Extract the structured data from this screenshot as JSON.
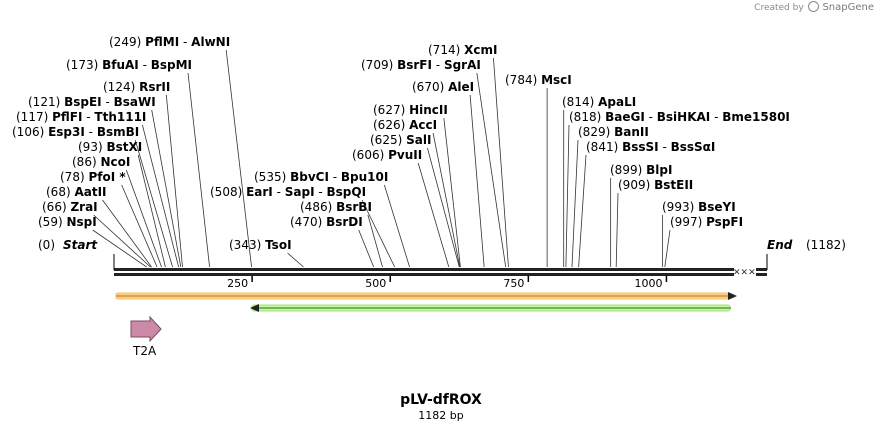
{
  "branding": {
    "prefix": "Created by",
    "name": "SnapGene",
    "logo_icon": "snapgene-logo-icon"
  },
  "map": {
    "title": "pLV-dfROX",
    "length_label": "1182 bp",
    "length": 1182,
    "start_label": "Start",
    "start_pos": "(0)",
    "end_label": "End",
    "end_pos": "(1182)",
    "ticks": [
      "250",
      "500",
      "750",
      "1000"
    ],
    "tick_values": [
      250,
      500,
      750,
      1000
    ],
    "colors": {
      "orange_feature": "#f0a040",
      "green_feature": "#66cc44",
      "t2a_arrow": "#cc8aa8"
    }
  },
  "sites": [
    {
      "pos": "(59)",
      "names": [
        "NspI"
      ],
      "bp": 59
    },
    {
      "pos": "(66)",
      "names": [
        "ZraI"
      ],
      "bp": 66
    },
    {
      "pos": "(68)",
      "names": [
        "AatII"
      ],
      "bp": 68
    },
    {
      "pos": "(78)",
      "names": [
        "PfoI *"
      ],
      "bp": 78
    },
    {
      "pos": "(86)",
      "names": [
        "NcoI"
      ],
      "bp": 86
    },
    {
      "pos": "(93)",
      "names": [
        "BstXI"
      ],
      "bp": 93
    },
    {
      "pos": "(106)",
      "names": [
        "Esp3I",
        "BsmBI"
      ],
      "bp": 106
    },
    {
      "pos": "(117)",
      "names": [
        "PflFI",
        "Tth111I"
      ],
      "bp": 117
    },
    {
      "pos": "(121)",
      "names": [
        "BspEI",
        "BsaWI"
      ],
      "bp": 121
    },
    {
      "pos": "(124)",
      "names": [
        "RsrII"
      ],
      "bp": 124
    },
    {
      "pos": "(173)",
      "names": [
        "BfuAI",
        "BspMI"
      ],
      "bp": 173
    },
    {
      "pos": "(249)",
      "names": [
        "PflMI",
        "AlwNI"
      ],
      "bp": 249
    },
    {
      "pos": "(343)",
      "names": [
        "TsoI"
      ],
      "bp": 343
    },
    {
      "pos": "(508)",
      "names": [
        "EarI",
        "SapI",
        "BspQI"
      ],
      "bp": 508
    },
    {
      "pos": "(535)",
      "names": [
        "BbvCI",
        "Bpu10I"
      ],
      "bp": 535
    },
    {
      "pos": "(486)",
      "names": [
        "BsrBI"
      ],
      "bp": 486
    },
    {
      "pos": "(470)",
      "names": [
        "BsrDI"
      ],
      "bp": 470
    },
    {
      "pos": "(606)",
      "names": [
        "PvuII"
      ],
      "bp": 606
    },
    {
      "pos": "(625)",
      "names": [
        "SalI"
      ],
      "bp": 625
    },
    {
      "pos": "(626)",
      "names": [
        "AccI"
      ],
      "bp": 626
    },
    {
      "pos": "(627)",
      "names": [
        "HincII"
      ],
      "bp": 627
    },
    {
      "pos": "(670)",
      "names": [
        "AleI"
      ],
      "bp": 670
    },
    {
      "pos": "(709)",
      "names": [
        "BsrFI",
        "SgrAI"
      ],
      "bp": 709
    },
    {
      "pos": "(714)",
      "names": [
        "XcmI"
      ],
      "bp": 714
    },
    {
      "pos": "(784)",
      "names": [
        "MscI"
      ],
      "bp": 784
    },
    {
      "pos": "(814)",
      "names": [
        "ApaLI"
      ],
      "bp": 814
    },
    {
      "pos": "(818)",
      "names": [
        "BaeGI",
        "BsiHKAI",
        "Bme1580I"
      ],
      "bp": 818
    },
    {
      "pos": "(829)",
      "names": [
        "BanII"
      ],
      "bp": 829
    },
    {
      "pos": "(841)",
      "names": [
        "BssSI",
        "BssSαI"
      ],
      "bp": 841
    },
    {
      "pos": "(899)",
      "names": [
        "BlpI"
      ],
      "bp": 899
    },
    {
      "pos": "(909)",
      "names": [
        "BstEII"
      ],
      "bp": 909
    },
    {
      "pos": "(993)",
      "names": [
        "BseYI"
      ],
      "bp": 993
    },
    {
      "pos": "(997)",
      "names": [
        "PspFI"
      ],
      "bp": 997
    }
  ],
  "features": [
    {
      "name": "",
      "start": 1,
      "end": 1182,
      "strand": "forward",
      "color": "#f0a040"
    },
    {
      "name": "",
      "start": 250,
      "end": 1182,
      "strand": "reverse",
      "color": "#66cc44"
    },
    {
      "name": "T2A",
      "start": 30,
      "end": 85,
      "strand": "forward",
      "color": "#cc8aa8"
    }
  ]
}
